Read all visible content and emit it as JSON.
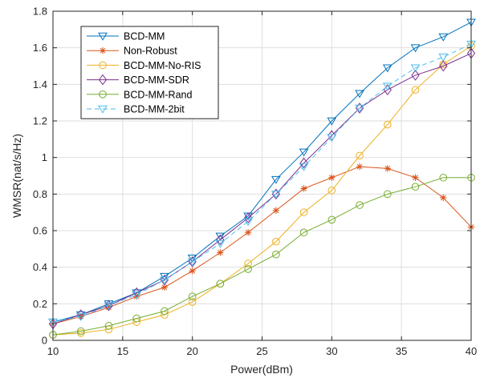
{
  "chart_data": {
    "type": "line",
    "title": "",
    "xlabel": "Power(dBm)",
    "ylabel": "WMSR(nat/s/Hz)",
    "xlim": [
      10,
      40
    ],
    "ylim": [
      0,
      1.8
    ],
    "grid": true,
    "legend_position": "top-left",
    "x": [
      10,
      12,
      14,
      16,
      18,
      20,
      22,
      24,
      26,
      28,
      30,
      32,
      34,
      36,
      38,
      40
    ],
    "x_ticks": [
      "10",
      "15",
      "20",
      "25",
      "30",
      "35",
      "40"
    ],
    "y_ticks": [
      "0",
      "0.2",
      "0.4",
      "0.6",
      "0.8",
      "1",
      "1.2",
      "1.4",
      "1.6",
      "1.8"
    ],
    "series": [
      {
        "name": "BCD-MM",
        "color": "#0072bd",
        "marker": "triangle-down",
        "dash": "solid",
        "values": [
          0.1,
          0.14,
          0.2,
          0.26,
          0.35,
          0.45,
          0.57,
          0.68,
          0.88,
          1.03,
          1.2,
          1.35,
          1.49,
          1.6,
          1.66,
          1.74
        ]
      },
      {
        "name": "Non-Robust",
        "color": "#d95319",
        "marker": "asterisk",
        "dash": "solid",
        "values": [
          0.09,
          0.13,
          0.18,
          0.24,
          0.29,
          0.38,
          0.48,
          0.59,
          0.71,
          0.83,
          0.89,
          0.95,
          0.94,
          0.89,
          0.78,
          0.62
        ]
      },
      {
        "name": "BCD-MM-No-RIS",
        "color": "#edb120",
        "marker": "circle",
        "dash": "solid",
        "values": [
          0.03,
          0.04,
          0.06,
          0.1,
          0.14,
          0.21,
          0.31,
          0.42,
          0.54,
          0.7,
          0.82,
          1.01,
          1.18,
          1.37,
          1.51,
          1.61
        ]
      },
      {
        "name": "BCD-MM-SDR",
        "color": "#7e2f8e",
        "marker": "diamond",
        "dash": "solid",
        "values": [
          0.09,
          0.14,
          0.19,
          0.26,
          0.33,
          0.43,
          0.55,
          0.67,
          0.8,
          0.97,
          1.12,
          1.27,
          1.37,
          1.45,
          1.5,
          1.57
        ]
      },
      {
        "name": "BCD-MM-Rand",
        "color": "#77ac30",
        "marker": "circle",
        "dash": "solid",
        "values": [
          0.03,
          0.05,
          0.08,
          0.12,
          0.16,
          0.24,
          0.31,
          0.39,
          0.47,
          0.59,
          0.66,
          0.74,
          0.8,
          0.84,
          0.89,
          0.89
        ]
      },
      {
        "name": "BCD-MM-2bit",
        "color": "#4dbeee",
        "marker": "triangle-down",
        "dash": "dashed",
        "values": [
          0.1,
          0.13,
          0.19,
          0.25,
          0.33,
          0.43,
          0.53,
          0.65,
          0.8,
          0.95,
          1.11,
          1.27,
          1.39,
          1.49,
          1.55,
          1.62
        ]
      }
    ]
  }
}
